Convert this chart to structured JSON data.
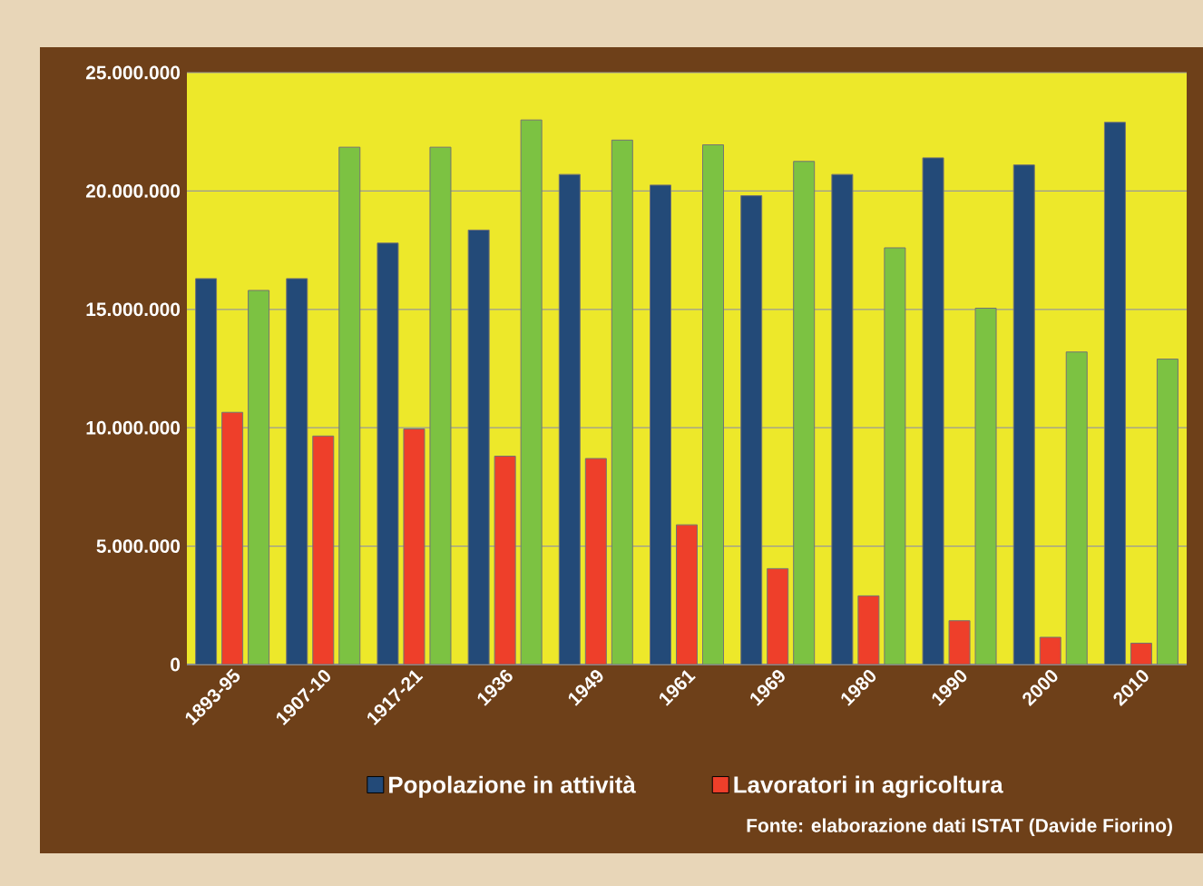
{
  "chart_data": {
    "type": "bar",
    "categories": [
      "1893-95",
      "1907-10",
      "1917-21",
      "1936",
      "1949",
      "1961",
      "1969",
      "1980",
      "1990",
      "2000",
      "2010"
    ],
    "series": [
      {
        "name": "Popolazione in attività",
        "color": "#234a78",
        "values": [
          16300000.0,
          16300000.0,
          17800000.0,
          18350000.0,
          20700000.0,
          20250000.0,
          19800000.0,
          20700000.0,
          21400000.0,
          21100000.0,
          22900000.0
        ]
      },
      {
        "name": "Lavoratori in agricoltura",
        "color": "#ee3f2a",
        "values": [
          10650000.0,
          9650000.0,
          9950000.0,
          8800000.0,
          8700000.0,
          5900000.0,
          4050000.0,
          2900000.0,
          1850000.0,
          1150000.0,
          900000.0
        ]
      },
      {
        "color": "#7cc242",
        "values": [
          15800000.0,
          21850000.0,
          21850000.0,
          23000000.0,
          22150000.0,
          21950000.0,
          21250000.0,
          17600000.0,
          15050000.0,
          13200000.0,
          12900000.0
        ]
      }
    ],
    "ylim": [
      0,
      25000000
    ],
    "yticks": [
      0,
      {
        "value": 5000000,
        "label": "5.000.000"
      },
      {
        "value": 10000000,
        "label": "10.000.000"
      },
      {
        "value": 15000000,
        "label": "15.000.000"
      },
      {
        "value": 20000000,
        "label": "20.000.000"
      },
      {
        "value": 25000000,
        "label": "25.000.000"
      }
    ],
    "grid": "y",
    "legend": "bottom",
    "annotations": [
      "Fonte: elaborazione dati ISTAT (Davide Fiorino)"
    ]
  }
}
